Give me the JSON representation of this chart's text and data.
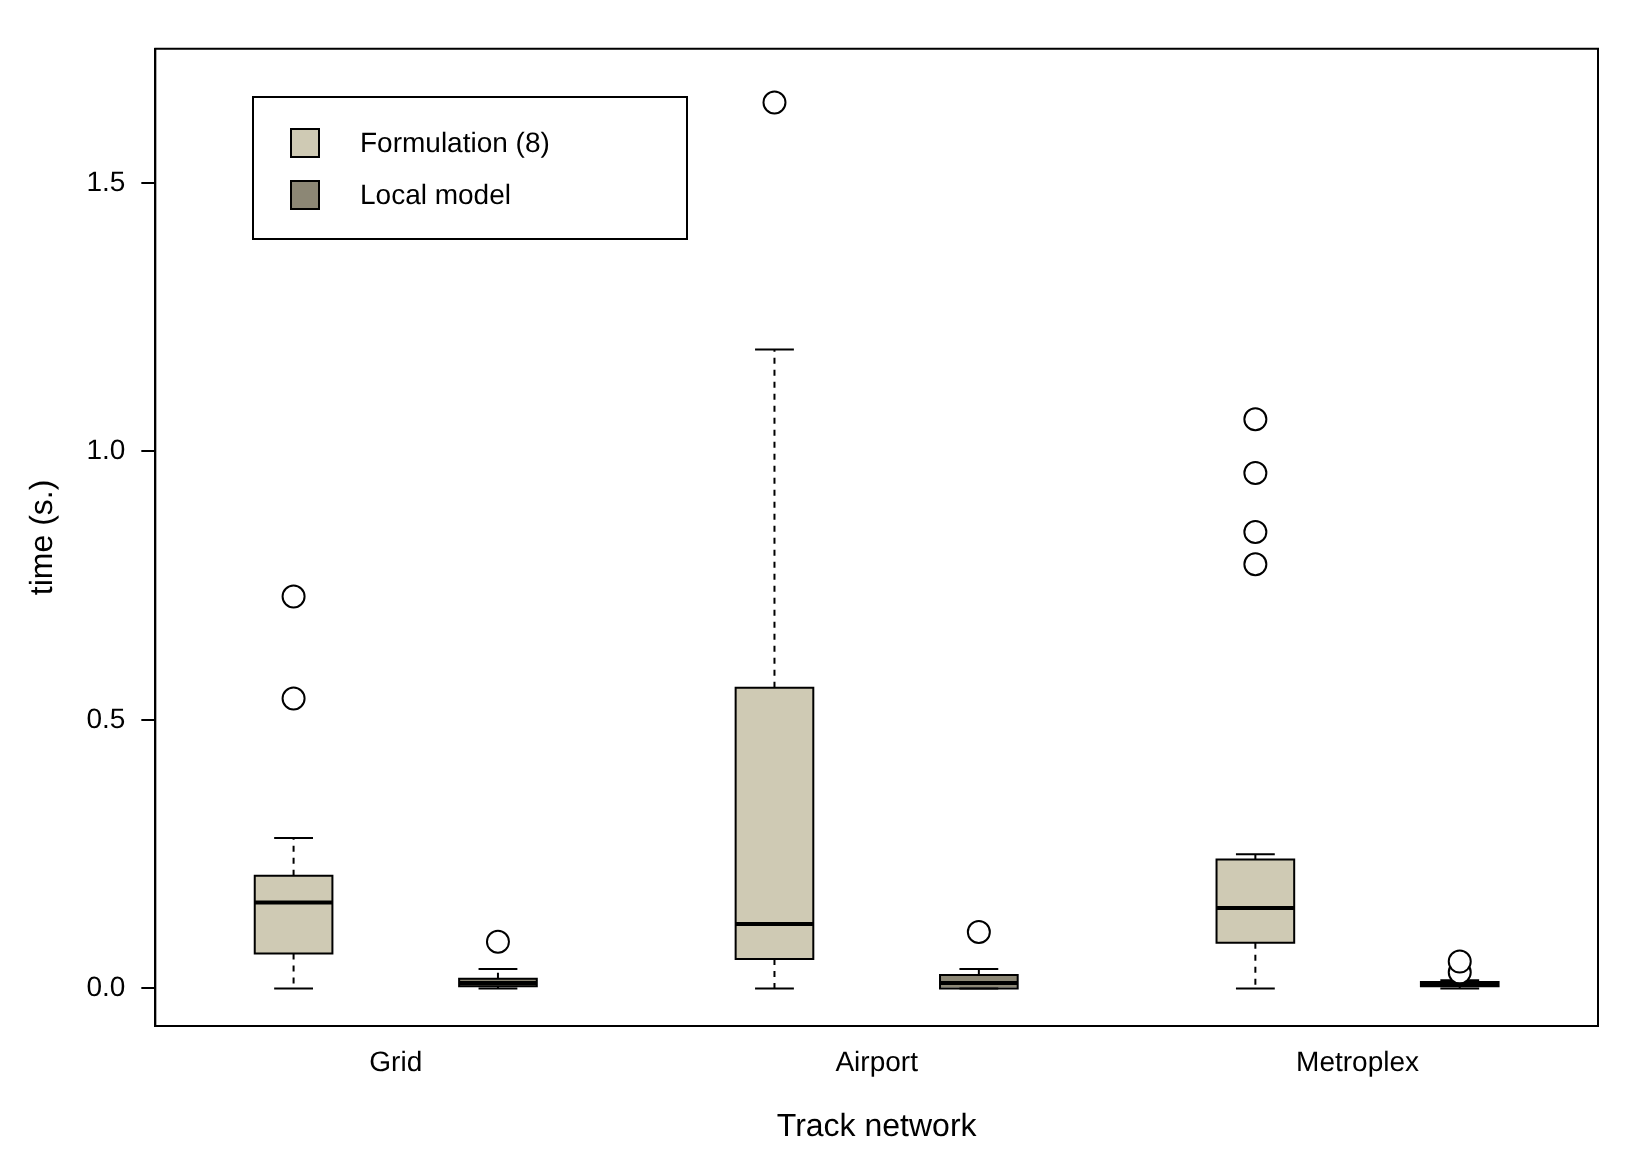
{
  "chart_data": {
    "type": "box",
    "xlabel": "Track network",
    "ylabel": "time (s.)",
    "categories": [
      "Grid",
      "Airport",
      "Metroplex"
    ],
    "series": [
      {
        "name": "Formulation (8)",
        "color": "#cfcab4",
        "boxes": [
          {
            "low": 0,
            "q1": 0.065,
            "median": 0.16,
            "q3": 0.21,
            "high": 0.28,
            "outliers": [
              0.54,
              0.73
            ]
          },
          {
            "low": 0,
            "q1": 0.055,
            "median": 0.12,
            "q3": 0.56,
            "high": 1.19,
            "outliers": [
              1.65
            ]
          },
          {
            "low": 0,
            "q1": 0.085,
            "median": 0.15,
            "q3": 0.24,
            "high": 0.25,
            "outliers": [
              0.79,
              0.85,
              0.96,
              1.06
            ]
          }
        ]
      },
      {
        "name": "Local model",
        "color": "#8c8775",
        "boxes": [
          {
            "low": 0,
            "q1": 0.004,
            "median": 0.01,
            "q3": 0.018,
            "high": 0.036,
            "outliers": [
              0.087
            ]
          },
          {
            "low": 0,
            "q1": 0,
            "median": 0.01,
            "q3": 0.025,
            "high": 0.036,
            "outliers": [
              0.105
            ]
          },
          {
            "low": 0,
            "q1": 0.004,
            "median": 0.008,
            "q3": 0.012,
            "high": 0.015,
            "outliers": [
              0.03,
              0.05
            ]
          }
        ]
      }
    ],
    "ylim": [
      -0.07,
      1.75
    ],
    "yticks": [
      {
        "value": 0,
        "label": "0.0"
      },
      {
        "value": 0.5,
        "label": "0.5"
      },
      {
        "value": 1,
        "label": "1.0"
      },
      {
        "value": 1.5,
        "label": "1.5"
      }
    ],
    "grid": false,
    "legend": "top left"
  }
}
